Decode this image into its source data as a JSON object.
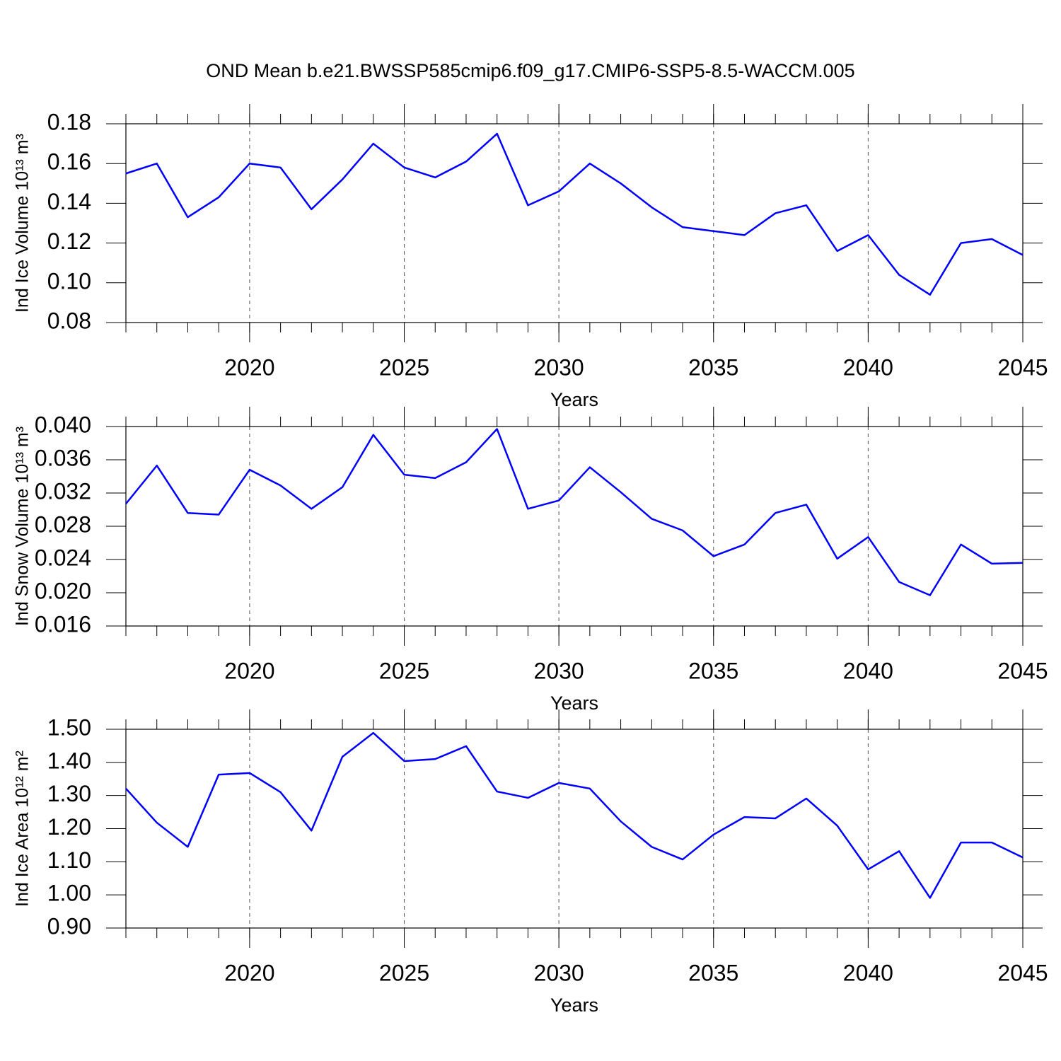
{
  "title": "OND Mean b.e21.BWSSP585cmip6.f09_g17.CMIP6-SSP5-8.5-WACCM.005",
  "chart_data": [
    {
      "type": "line",
      "ylabel": "Ind Ice Volume 10¹³ m³",
      "xlabel": "Years",
      "color": "#0000ff",
      "grid": true,
      "x": [
        2016,
        2017,
        2018,
        2019,
        2020,
        2021,
        2022,
        2023,
        2024,
        2025,
        2026,
        2027,
        2028,
        2029,
        2030,
        2031,
        2032,
        2033,
        2034,
        2035,
        2036,
        2037,
        2038,
        2039,
        2040,
        2041,
        2042,
        2043,
        2044,
        2045
      ],
      "values": [
        0.155,
        0.16,
        0.133,
        0.143,
        0.16,
        0.158,
        0.137,
        0.152,
        0.17,
        0.158,
        0.153,
        0.161,
        0.175,
        0.139,
        0.146,
        0.16,
        0.15,
        0.138,
        0.128,
        0.126,
        0.124,
        0.135,
        0.139,
        0.116,
        0.124,
        0.104,
        0.094,
        0.12,
        0.122,
        0.114
      ],
      "xlim": [
        2016,
        2045
      ],
      "xticks": [
        2020,
        2025,
        2030,
        2035,
        2040,
        2045
      ],
      "ylim": [
        0.08,
        0.18
      ],
      "yticks": [
        0.08,
        {
          "value": 0.1,
          "label": "0.10"
        },
        0.12,
        0.14,
        0.16,
        0.18
      ]
    },
    {
      "type": "line",
      "ylabel": "Ind Snow Volume 10¹³ m³",
      "xlabel": "Years",
      "color": "#0000ff",
      "grid": true,
      "x": [
        2016,
        2017,
        2018,
        2019,
        2020,
        2021,
        2022,
        2023,
        2024,
        2025,
        2026,
        2027,
        2028,
        2029,
        2030,
        2031,
        2032,
        2033,
        2034,
        2035,
        2036,
        2037,
        2038,
        2039,
        2040,
        2041,
        2042,
        2043,
        2044,
        2045
      ],
      "values": [
        0.0307,
        0.0353,
        0.0296,
        0.0294,
        0.0348,
        0.0329,
        0.0301,
        0.0327,
        0.039,
        0.0342,
        0.0338,
        0.0357,
        0.0397,
        0.0301,
        0.0311,
        0.0351,
        0.0321,
        0.0289,
        0.0275,
        0.0244,
        0.0258,
        0.0296,
        0.0306,
        0.0241,
        0.0267,
        0.0213,
        0.0197,
        0.0258,
        0.0235,
        0.0236
      ],
      "xlim": [
        2016,
        2045
      ],
      "xticks": [
        2020,
        2025,
        2030,
        2035,
        2040,
        2045
      ],
      "ylim": [
        0.016,
        0.04
      ],
      "yticks": [
        0.016,
        {
          "value": 0.02,
          "label": "0.020"
        },
        0.024,
        0.028,
        0.032,
        0.036,
        {
          "value": 0.04,
          "label": "0.040"
        }
      ]
    },
    {
      "type": "line",
      "ylabel": "Ind Ice Area 10¹² m²",
      "xlabel": "Years",
      "color": "#0000ff",
      "grid": true,
      "x": [
        2016,
        2017,
        2018,
        2019,
        2020,
        2021,
        2022,
        2023,
        2024,
        2025,
        2026,
        2027,
        2028,
        2029,
        2030,
        2031,
        2032,
        2033,
        2034,
        2035,
        2036,
        2037,
        2038,
        2039,
        2040,
        2041,
        2042,
        2043,
        2044,
        2045
      ],
      "values": [
        1.321,
        1.218,
        1.145,
        1.363,
        1.368,
        1.31,
        1.194,
        1.417,
        1.489,
        1.404,
        1.41,
        1.449,
        1.312,
        1.293,
        1.338,
        1.321,
        1.222,
        1.145,
        1.107,
        1.182,
        1.235,
        1.231,
        1.291,
        1.209,
        1.077,
        1.132,
        0.991,
        1.158,
        1.158,
        1.113
      ],
      "xlim": [
        2016,
        2045
      ],
      "xticks": [
        2020,
        2025,
        2030,
        2035,
        2040,
        2045
      ],
      "ylim": [
        0.9,
        1.5
      ],
      "yticks": [
        {
          "value": 0.9,
          "label": "0.90"
        },
        {
          "value": 1.0,
          "label": "1.00"
        },
        {
          "value": 1.1,
          "label": "1.10"
        },
        {
          "value": 1.2,
          "label": "1.20"
        },
        {
          "value": 1.3,
          "label": "1.30"
        },
        {
          "value": 1.4,
          "label": "1.40"
        },
        {
          "value": 1.5,
          "label": "1.50"
        }
      ]
    }
  ]
}
